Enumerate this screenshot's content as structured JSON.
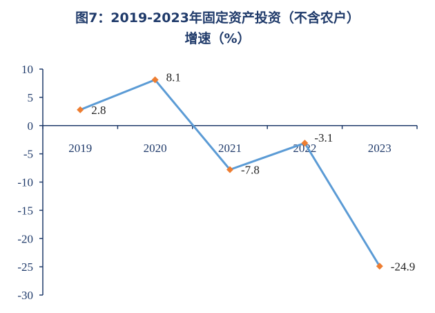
{
  "title_line1": "图7：2019-2023年固定资产投资（不含农户）",
  "title_line2": "增速（%）",
  "colors": {
    "line": "#5b9bd5",
    "marker": "#ed7d31",
    "axis": "#1f3a6a",
    "text": "#222222"
  },
  "chart_data": {
    "type": "line",
    "title": "图7：2019-2023年固定资产投资（不含农户）增速（%）",
    "categories": [
      "2019",
      "2020",
      "2021",
      "2022",
      "2023"
    ],
    "series": [
      {
        "values": [
          2.8,
          8.1,
          -7.8,
          -3.1,
          -24.9
        ]
      }
    ],
    "data_labels": [
      "2.8",
      "8.1",
      "-7.8",
      "-3.1",
      "-24.9"
    ],
    "ylim": [
      -30,
      10
    ],
    "yticks": [
      10,
      5,
      0,
      -5,
      -10,
      -15,
      -20,
      -25,
      -30
    ],
    "xlabel": "",
    "ylabel": "",
    "grid": false,
    "legend": "none"
  }
}
